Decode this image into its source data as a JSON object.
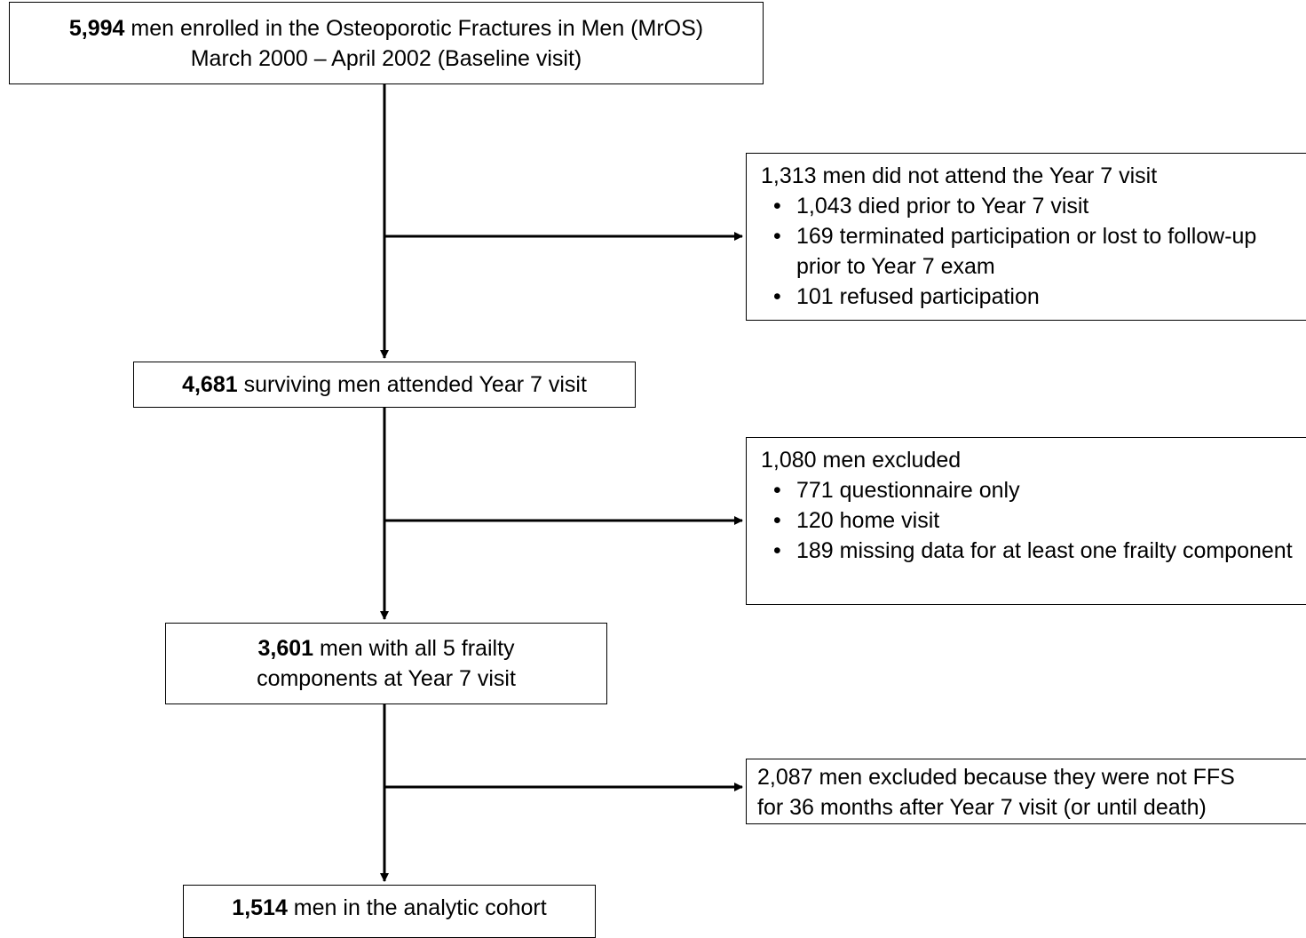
{
  "boxes": {
    "baseline": {
      "count": "5,994",
      "line1_rest": " men enrolled in the Osteoporotic Fractures in Men (MrOS)",
      "line2": "March 2000 – April 2002 (Baseline visit)"
    },
    "excluded_1": {
      "heading": "1,313 men did not attend the Year 7 visit",
      "items": [
        "1,043 died prior to Year 7 visit",
        "169 terminated participation or lost to follow-up prior to Year 7 exam",
        "101 refused participation"
      ]
    },
    "year7": {
      "count": "4,681",
      "rest": " surviving men attended Year 7 visit"
    },
    "excluded_2": {
      "heading": "1,080 men excluded",
      "items": [
        "771 questionnaire only",
        "120 home visit",
        "189 missing data for at least one frailty component"
      ]
    },
    "frailty": {
      "count": "3,601",
      "line1_rest": " men with all 5 frailty",
      "line2": "components at Year 7 visit"
    },
    "excluded_3": {
      "line1": "2,087 men excluded because they were not FFS",
      "line2": "for 36 months after Year 7 visit (or until death)"
    },
    "analytic": {
      "count": "1,514",
      "rest": " men in the analytic cohort"
    }
  }
}
